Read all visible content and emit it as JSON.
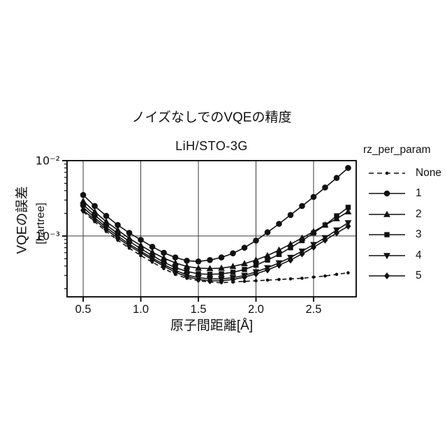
{
  "figure": {
    "title": "ノイズなしでのVQEの精度",
    "subtitle": "LiH/STO-3G",
    "xlabel": "原子間距離[Å]",
    "ylabel": "VQEの誤差",
    "ylabel_units": "[hartree]",
    "legend_title": "rz_per_param"
  },
  "chart_data": {
    "type": "line",
    "title": "ノイズなしでのVQEの精度",
    "subtitle": "LiH/STO-3G",
    "xlabel": "原子間距離[Å]",
    "ylabel": "VQEの誤差 [hartree]",
    "legend_title": "rz_per_param",
    "legend_position": "right",
    "grid": true,
    "color": "#111111",
    "x_axis": {
      "scale": "linear",
      "lim": [
        0.36,
        2.87
      ],
      "ticks": [
        0.5,
        1.0,
        1.5,
        2.0,
        2.5
      ],
      "tick_labels": [
        "0.5",
        "1.0",
        "1.5",
        "2.0",
        "2.5"
      ]
    },
    "y_axis": {
      "scale": "log",
      "lim": [
        0.000156,
        0.01
      ],
      "ticks": [
        0.01,
        0.001
      ],
      "tick_labels": [
        "10⁻²",
        "10⁻³"
      ]
    },
    "x": [
      0.5,
      0.6,
      0.7,
      0.8,
      0.9,
      1.0,
      1.1,
      1.2,
      1.3,
      1.4,
      1.5,
      1.6,
      1.7,
      1.8,
      1.9,
      2.0,
      2.1,
      2.2,
      2.3,
      2.4,
      2.5,
      2.6,
      2.7,
      2.8
    ],
    "series": [
      {
        "name": "None",
        "line": "dashed",
        "marker": "dot",
        "values": [
          0.0021,
          0.00155,
          0.00115,
          0.00088,
          0.00069,
          0.00055,
          0.00045,
          0.00037,
          0.00031,
          0.000275,
          0.000255,
          0.000245,
          0.00024,
          0.000245,
          0.00025,
          0.000255,
          0.00026,
          0.000265,
          0.00027,
          0.000275,
          0.000285,
          0.000295,
          0.00031,
          0.000325
        ]
      },
      {
        "name": "1",
        "line": "solid",
        "marker": "circle",
        "values": [
          0.0035,
          0.0025,
          0.00185,
          0.0014,
          0.0011,
          0.00089,
          0.00072,
          0.0006,
          0.00052,
          0.00047,
          0.00046,
          0.00048,
          0.00052,
          0.00059,
          0.0007,
          0.00087,
          0.00112,
          0.00145,
          0.0019,
          0.0025,
          0.0033,
          0.0044,
          0.0059,
          0.008
        ]
      },
      {
        "name": "2",
        "line": "solid",
        "marker": "triangle-up",
        "values": [
          0.0029,
          0.0021,
          0.00155,
          0.0012,
          0.00093,
          0.00075,
          0.00061,
          0.00051,
          0.00044,
          0.000395,
          0.000375,
          0.00037,
          0.000375,
          0.000395,
          0.00043,
          0.00048,
          0.00055,
          0.00065,
          0.00078,
          0.00094,
          0.00115,
          0.0014,
          0.0017,
          0.0021
        ]
      },
      {
        "name": "3",
        "line": "solid",
        "marker": "square",
        "values": [
          0.0026,
          0.0019,
          0.0014,
          0.00108,
          0.00085,
          0.00068,
          0.00055,
          0.00045,
          0.00038,
          0.00034,
          0.000315,
          0.00031,
          0.000315,
          0.00033,
          0.00036,
          0.00041,
          0.00048,
          0.00057,
          0.0007,
          0.00087,
          0.0011,
          0.0014,
          0.00185,
          0.0024
        ]
      },
      {
        "name": "4",
        "line": "solid",
        "marker": "triangle-down",
        "values": [
          0.0024,
          0.00175,
          0.0013,
          0.001,
          0.00078,
          0.00063,
          0.00051,
          0.00042,
          0.00035,
          0.000305,
          0.00028,
          0.00027,
          0.00027,
          0.00028,
          0.0003,
          0.000335,
          0.00038,
          0.00044,
          0.00052,
          0.00063,
          0.00077,
          0.00095,
          0.0012,
          0.0015
        ]
      },
      {
        "name": "5",
        "line": "solid",
        "marker": "diamond",
        "values": [
          0.0022,
          0.00165,
          0.00122,
          0.00094,
          0.00074,
          0.0006,
          0.000485,
          0.0004,
          0.00033,
          0.00029,
          0.000265,
          0.000255,
          0.000255,
          0.000265,
          0.000285,
          0.000315,
          0.000355,
          0.00041,
          0.00048,
          0.00058,
          0.00071,
          0.00088,
          0.0011,
          0.00135
        ]
      }
    ]
  }
}
